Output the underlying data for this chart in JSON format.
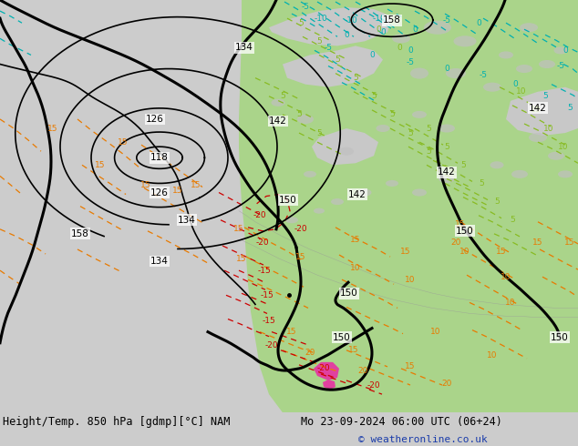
{
  "title_left": "Height/Temp. 850 hPa [gdmp][°C] NAM",
  "title_right": "Mo 23-09-2024 06:00 UTC (06+24)",
  "copyright": "© weatheronline.co.uk",
  "bg_color": "#d8d8d8",
  "green_color": "#aad48a",
  "copyright_color": "#1a3caa",
  "title_fontsize": 8.5,
  "orange": "#e87a00",
  "cyan": "#00b0b0",
  "red": "#cc0000",
  "lime": "#88bb22",
  "black": "#000000"
}
